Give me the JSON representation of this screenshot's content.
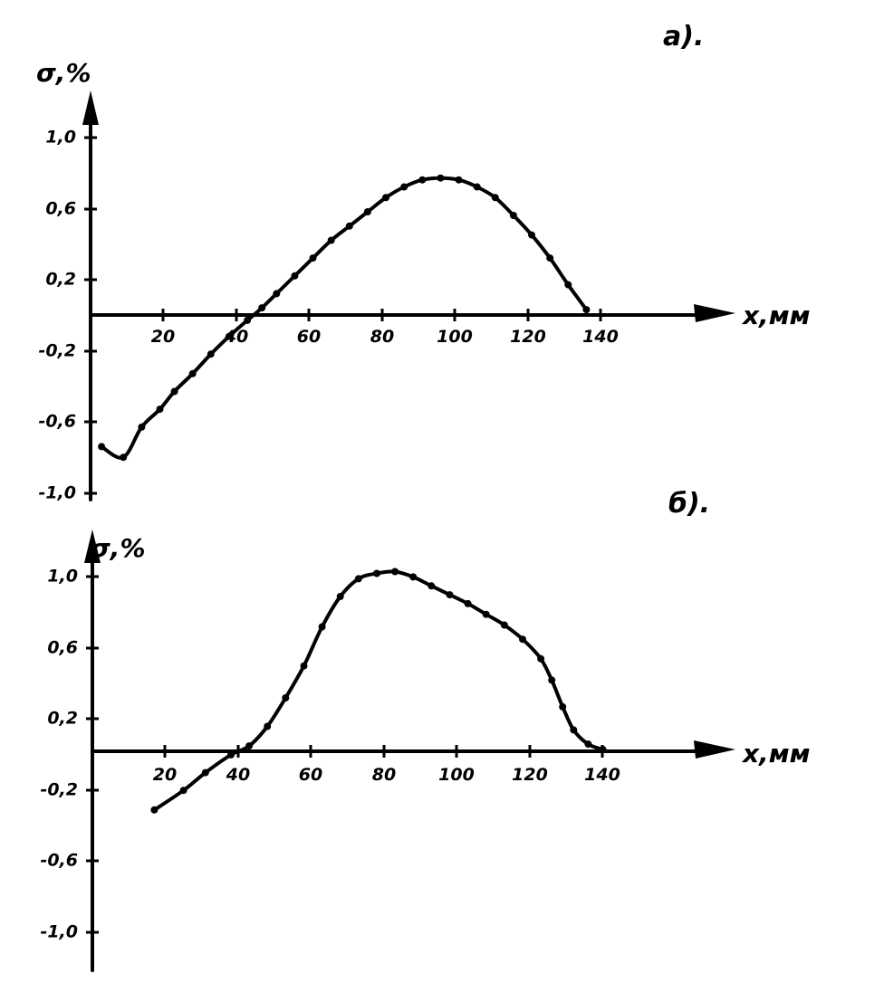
{
  "chart_data": [
    {
      "type": "line",
      "panel_label": "a).",
      "ylabel": "σ,%",
      "xlabel": "x,мм",
      "xlim": [
        0,
        155
      ],
      "ylim": [
        -1.0,
        1.0
      ],
      "x_tick_labels": [
        "20",
        "40",
        "60",
        "80",
        "100",
        "120",
        "140"
      ],
      "x_ticks": [
        20,
        40,
        60,
        80,
        100,
        120,
        140
      ],
      "y_tick_labels": [
        "1,0",
        "0,6",
        "0,2",
        "-0,2",
        "-0,6",
        "-1,0"
      ],
      "y_ticks": [
        1.0,
        0.6,
        0.2,
        -0.2,
        -0.6,
        -1.0
      ],
      "grid": false,
      "series": [
        {
          "x": [
            3,
            9,
            14,
            19,
            23,
            28,
            33,
            38,
            43,
            47,
            51,
            56,
            61,
            66,
            71,
            76,
            81,
            86,
            91,
            96,
            101,
            106,
            111,
            116,
            121,
            126,
            131,
            136
          ],
          "y": [
            -0.74,
            -0.8,
            -0.63,
            -0.53,
            -0.43,
            -0.33,
            -0.22,
            -0.12,
            -0.03,
            0.04,
            0.12,
            0.22,
            0.32,
            0.42,
            0.5,
            0.58,
            0.66,
            0.72,
            0.76,
            0.77,
            0.76,
            0.72,
            0.66,
            0.56,
            0.45,
            0.32,
            0.17,
            0.03
          ]
        }
      ]
    },
    {
      "type": "line",
      "panel_label": "б).",
      "ylabel": "σ,%",
      "xlabel": "x,мм",
      "xlim": [
        0,
        155
      ],
      "ylim": [
        -1.0,
        1.0
      ],
      "x_tick_labels": [
        "20",
        "40",
        "60",
        "80",
        "100",
        "120",
        "140"
      ],
      "x_ticks": [
        20,
        40,
        60,
        80,
        100,
        120,
        140
      ],
      "y_tick_labels": [
        "1,0",
        "0,6",
        "0,2",
        "-0,2",
        "-0,6",
        "-1,0"
      ],
      "y_ticks": [
        1.0,
        0.6,
        0.2,
        -0.2,
        -0.6,
        -1.0
      ],
      "grid": false,
      "series": [
        {
          "x": [
            17,
            25,
            31,
            38,
            43,
            48,
            53,
            58,
            63,
            68,
            73,
            78,
            83,
            88,
            93,
            98,
            103,
            108,
            113,
            118,
            123,
            126,
            129,
            132,
            136,
            140
          ],
          "y": [
            -0.33,
            -0.22,
            -0.12,
            -0.02,
            0.03,
            0.14,
            0.3,
            0.48,
            0.7,
            0.87,
            0.97,
            1.0,
            1.01,
            0.98,
            0.93,
            0.88,
            0.83,
            0.77,
            0.71,
            0.63,
            0.52,
            0.4,
            0.25,
            0.12,
            0.04,
            0.01
          ]
        }
      ]
    }
  ]
}
